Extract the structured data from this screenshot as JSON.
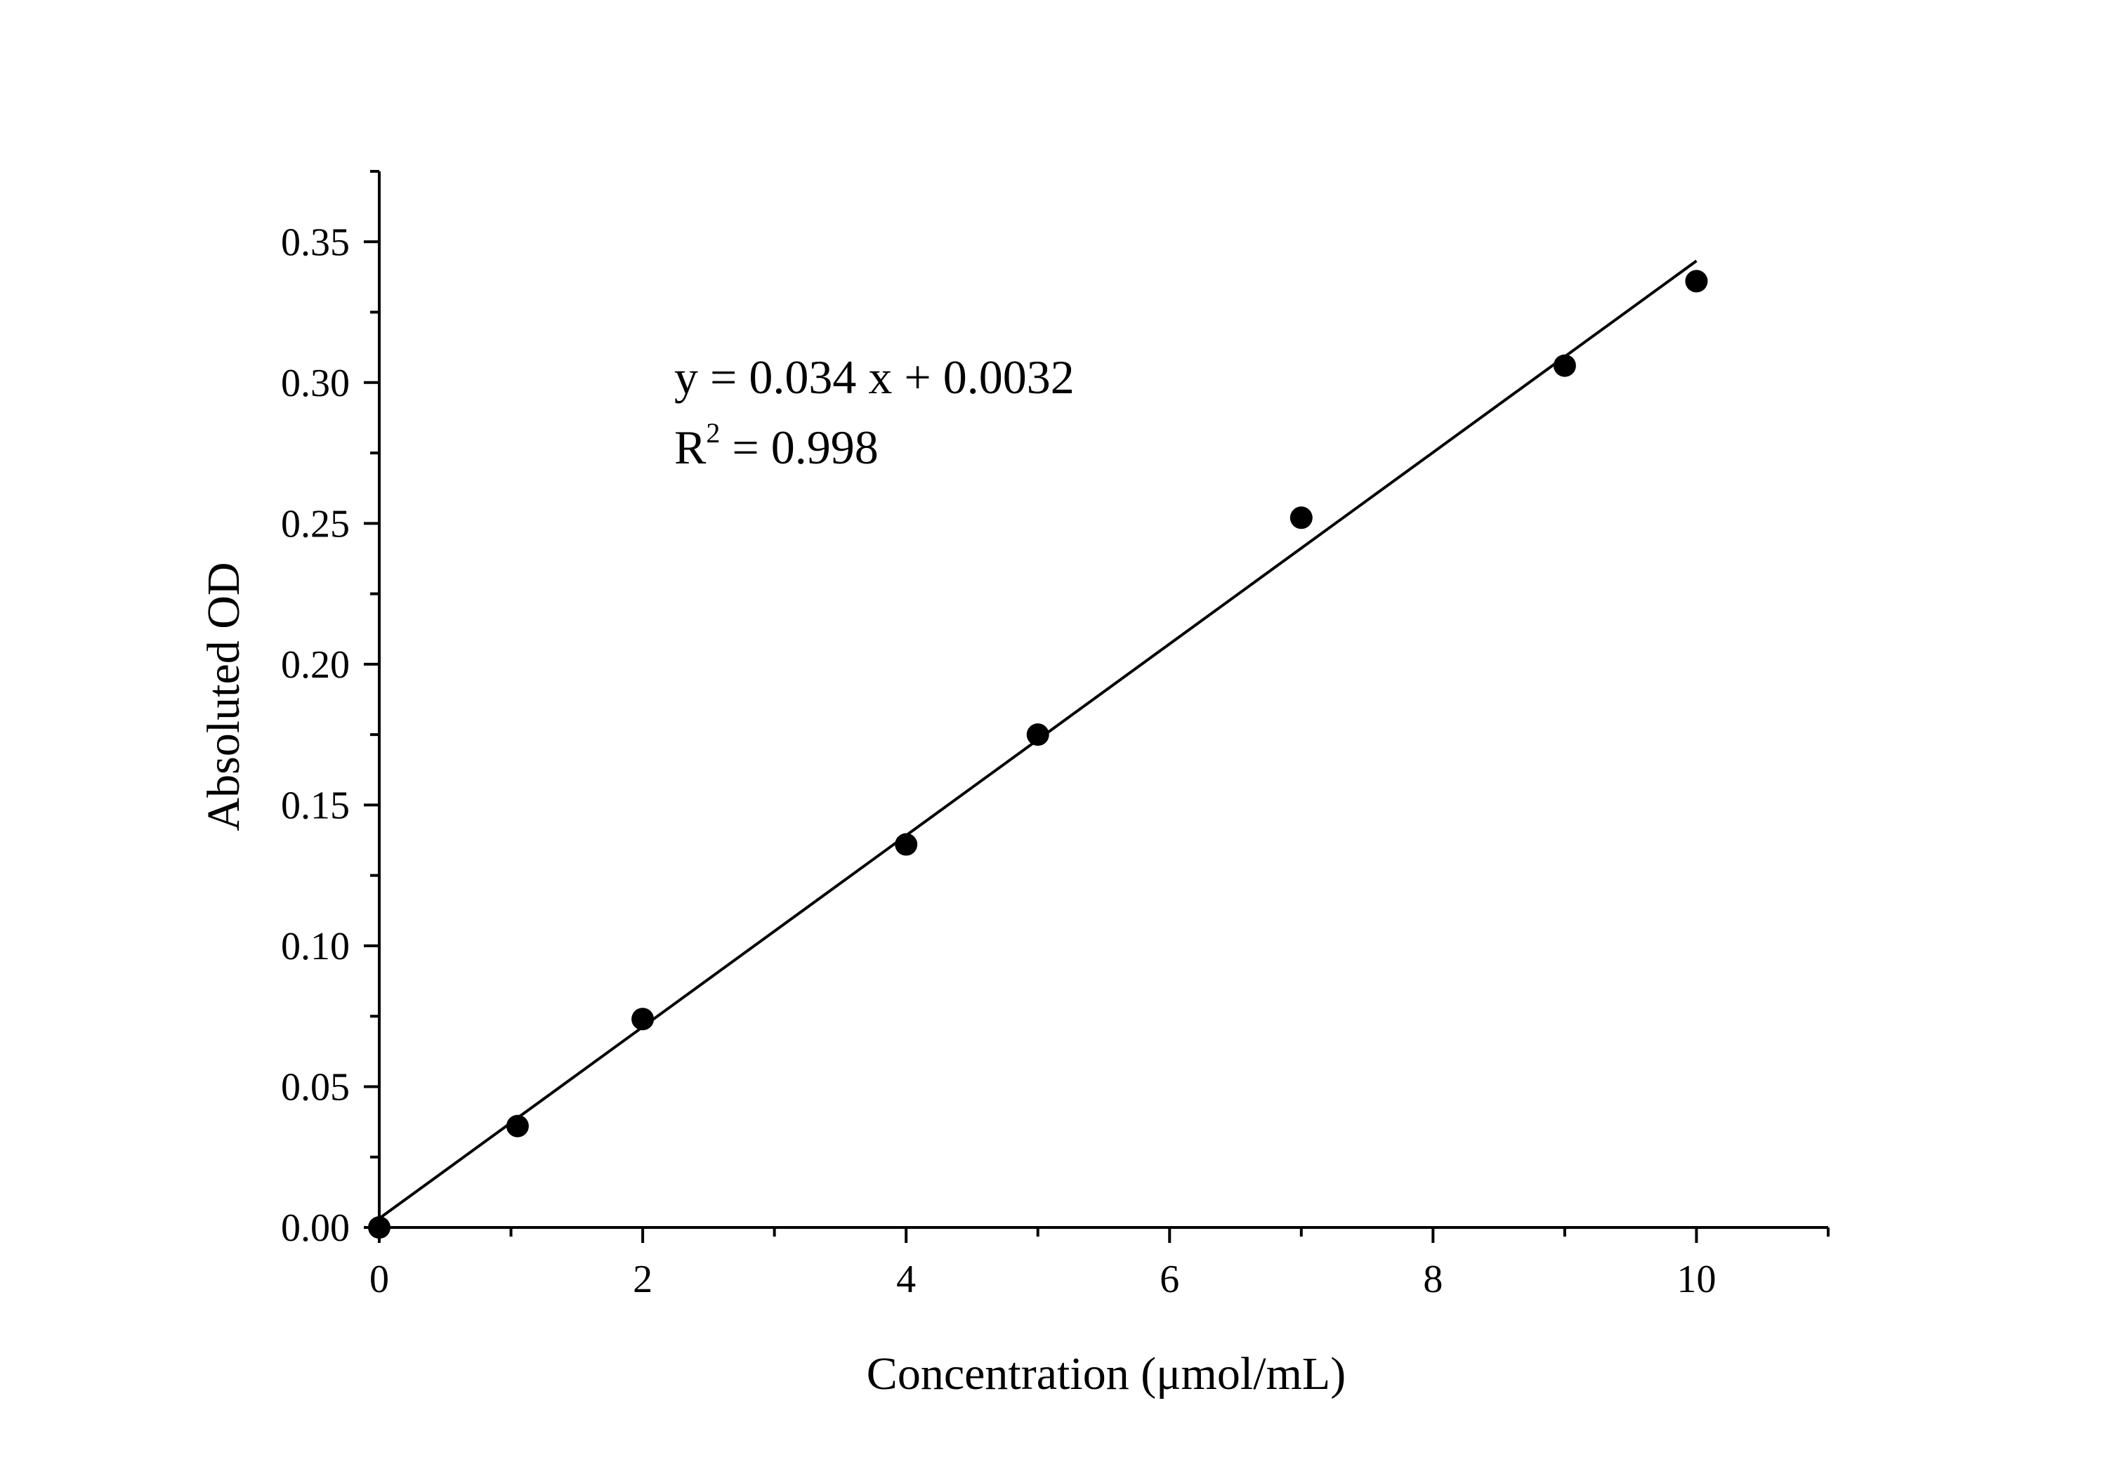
{
  "chart_data": {
    "type": "scatter",
    "title": "",
    "xlabel": "Concentration (μmol/mL)",
    "ylabel": "Absoluted OD",
    "xlim": [
      0,
      11
    ],
    "ylim": [
      0,
      0.375
    ],
    "x_ticks": [
      "0",
      "2",
      "4",
      "6",
      "8",
      "10"
    ],
    "y_ticks": [
      "0.00",
      "0.05",
      "0.10",
      "0.15",
      "0.20",
      "0.25",
      "0.30",
      "0.35"
    ],
    "grid": false,
    "series": [
      {
        "points": [
          {
            "x": 0,
            "y": 0.0
          },
          {
            "x": 1.05,
            "y": 0.036
          },
          {
            "x": 2,
            "y": 0.074
          },
          {
            "x": 4,
            "y": 0.136
          },
          {
            "x": 5,
            "y": 0.175
          },
          {
            "x": 7,
            "y": 0.252
          },
          {
            "x": 9,
            "y": 0.306
          },
          {
            "x": 10,
            "y": 0.336
          }
        ]
      }
    ],
    "fit_line": {
      "slope": 0.034,
      "intercept": 0.0032,
      "x_range": [
        0,
        10
      ]
    },
    "annotations": {
      "equation": "y = 0.034 x + 0.0032",
      "r2_base": "R",
      "r2_sup": "2",
      "r2_rest": " = 0.998"
    },
    "colors": {
      "marker": "#000000",
      "line": "#000000",
      "axis": "#000000"
    }
  }
}
